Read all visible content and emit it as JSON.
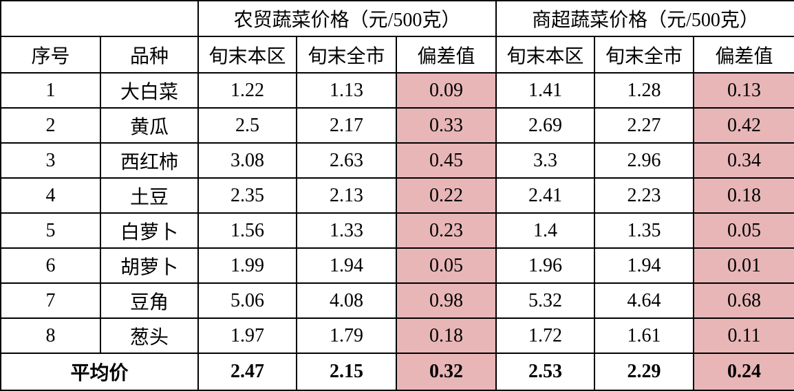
{
  "header": {
    "group_titles": [
      "农贸蔬菜价格（元/500克）",
      "商超蔬菜价格（元/500克）"
    ],
    "columns": [
      "序号",
      "品种",
      "旬末本区",
      "旬末全市",
      "偏差值",
      "旬末本区",
      "旬末全市",
      "偏差值"
    ]
  },
  "table": {
    "rows": [
      [
        "1",
        "大白菜",
        "1.22",
        "1.13",
        "0.09",
        "1.41",
        "1.28",
        "0.13"
      ],
      [
        "2",
        "黄瓜",
        "2.5",
        "2.17",
        "0.33",
        "2.69",
        "2.27",
        "0.42"
      ],
      [
        "3",
        "西红柿",
        "3.08",
        "2.63",
        "0.45",
        "3.3",
        "2.96",
        "0.34"
      ],
      [
        "4",
        "土豆",
        "2.35",
        "2.13",
        "0.22",
        "2.41",
        "2.23",
        "0.18"
      ],
      [
        "5",
        "白萝卜",
        "1.56",
        "1.33",
        "0.23",
        "1.4",
        "1.35",
        "0.05"
      ],
      [
        "6",
        "胡萝卜",
        "1.99",
        "1.94",
        "0.05",
        "1.96",
        "1.94",
        "0.01"
      ],
      [
        "7",
        "豆角",
        "5.06",
        "4.08",
        "0.98",
        "5.32",
        "4.64",
        "0.68"
      ],
      [
        "8",
        "葱头",
        "1.97",
        "1.79",
        "0.18",
        "1.72",
        "1.61",
        "0.11"
      ]
    ]
  },
  "footer": {
    "label": "平均价",
    "values": [
      "2.47",
      "2.15",
      "0.32",
      "2.53",
      "2.29",
      "0.24"
    ]
  }
}
